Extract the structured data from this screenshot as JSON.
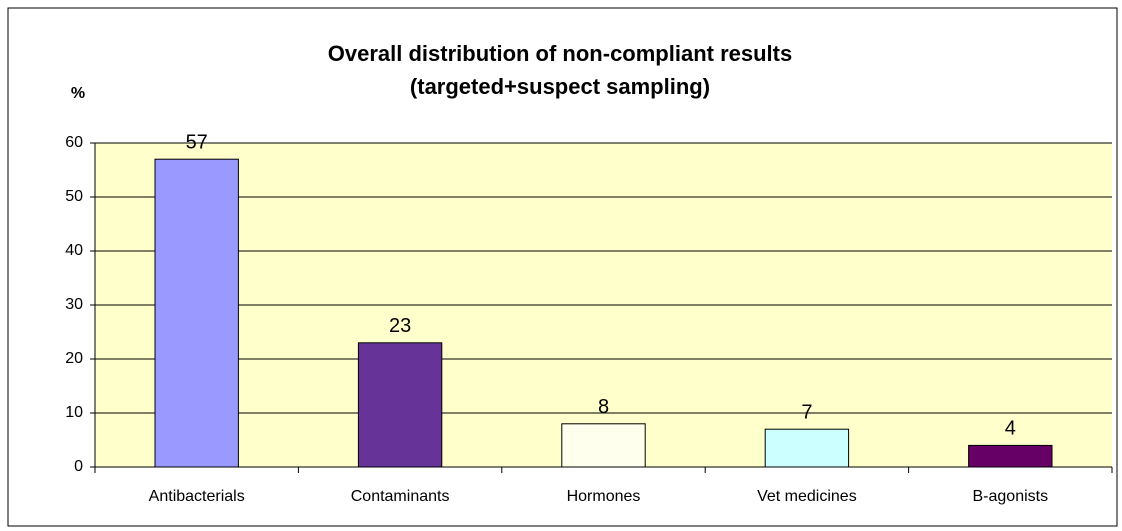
{
  "chart_data": {
    "type": "bar",
    "title": "Overall distribution of non-compliant results",
    "subtitle": "(targeted+suspect sampling)",
    "y_label": "%",
    "categories": [
      "Antibacterials",
      "Contaminants",
      "Hormones",
      "Vet medicines",
      "B-agonists"
    ],
    "values": [
      57,
      23,
      8,
      7,
      4
    ],
    "colors": [
      "#9999ff",
      "#663399",
      "#ffffee",
      "#ccffff",
      "#660066"
    ],
    "background": "#ffffcc",
    "ylim": [
      0,
      60
    ],
    "yticks": [
      0,
      10,
      20,
      30,
      40,
      50,
      60
    ],
    "grid": true
  }
}
